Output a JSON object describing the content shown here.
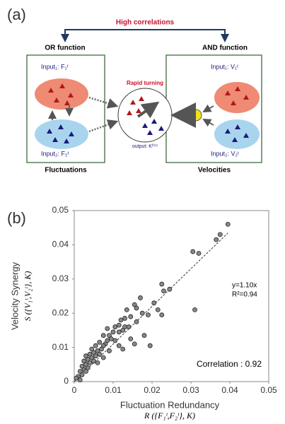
{
  "panel_a": {
    "label": "(a)",
    "header": "High correlations",
    "left": {
      "title": "OR function",
      "caption": "Fluctuations",
      "input1": "Input₁: F₁ᵗ",
      "input2": "Input₂: F₂ᵗ"
    },
    "center": {
      "title": "Rapid turning",
      "output": "output: Kᶠʳ⁽ᵗ⁾"
    },
    "right": {
      "title": "AND function",
      "caption": "Velocities",
      "input1": "Input₁: V₁ᵗ",
      "input2": "Input₂: V₂ᵗ"
    }
  },
  "panel_b_label": "(b)",
  "chart_data": {
    "type": "scatter",
    "xlabel": "Fluctuation Redundancy",
    "xlabel_formula": "R ({F₁ᵗ,F₂ᵗ}, K)",
    "ylabel": "Velocity Synergy",
    "ylabel_formula": "S ({V₁ᵗ,V₂ᵗ}, K)",
    "x": [
      0.0395,
      0.0365,
      0.0375,
      0.0305,
      0.032,
      0.031,
      0.0225,
      0.023,
      0.0245,
      0.017,
      0.0205,
      0.0215,
      0.0225,
      0.019,
      0.0175,
      0.0155,
      0.016,
      0.0135,
      0.0145,
      0.013,
      0.012,
      0.0115,
      0.013,
      0.0105,
      0.01,
      0.0115,
      0.0125,
      0.009,
      0.0095,
      0.0085,
      0.0105,
      0.008,
      0.0075,
      0.0065,
      0.0055,
      0.007,
      0.006,
      0.0045,
      0.005,
      0.004,
      0.0065,
      0.0055,
      0.003,
      0.0045,
      0.0035,
      0.005,
      0.0025,
      0.004,
      0.003,
      0.002,
      0.0035,
      0.0025,
      0.0015,
      0.002,
      0.001,
      0.0005,
      0.0015,
      0.003,
      0.006,
      0.0075,
      0.009,
      0.0115,
      0.0195,
      0.0145,
      0.0155,
      0.018,
      0.0085,
      0.0075,
      0.0125,
      0.014,
      0.016
    ],
    "values": [
      0.046,
      0.0415,
      0.043,
      0.038,
      0.0375,
      0.021,
      0.0285,
      0.0265,
      0.027,
      0.0245,
      0.023,
      0.021,
      0.0195,
      0.0195,
      0.02,
      0.0225,
      0.0215,
      0.021,
      0.019,
      0.0185,
      0.018,
      0.0165,
      0.016,
      0.016,
      0.0145,
      0.0145,
      0.015,
      0.0135,
      0.0125,
      0.012,
      0.012,
      0.011,
      0.0105,
      0.0115,
      0.0105,
      0.0095,
      0.009,
      0.0095,
      0.0085,
      0.008,
      0.008,
      0.0075,
      0.0075,
      0.007,
      0.0065,
      0.006,
      0.006,
      0.0055,
      0.005,
      0.0045,
      0.004,
      0.0035,
      0.003,
      0.002,
      0.0015,
      0.001,
      0.0005,
      0.003,
      0.0055,
      0.007,
      0.009,
      0.0105,
      0.0105,
      0.0125,
      0.011,
      0.0135,
      0.0155,
      0.0135,
      0.0095,
      0.016,
      0.0175
    ],
    "color": "#888888",
    "xlim": [
      0,
      0.05
    ],
    "ylim": [
      0,
      0.05
    ],
    "xticks": [
      0,
      0.01,
      0.02,
      0.03,
      0.04,
      0.05
    ],
    "yticks": [
      0,
      0.01,
      0.02,
      0.03,
      0.04,
      0.05
    ],
    "trendline": {
      "slope": 1.1,
      "label": "y=1.10x"
    },
    "annotations": [
      "R²=0.94",
      "Correlation : 0.92"
    ]
  }
}
